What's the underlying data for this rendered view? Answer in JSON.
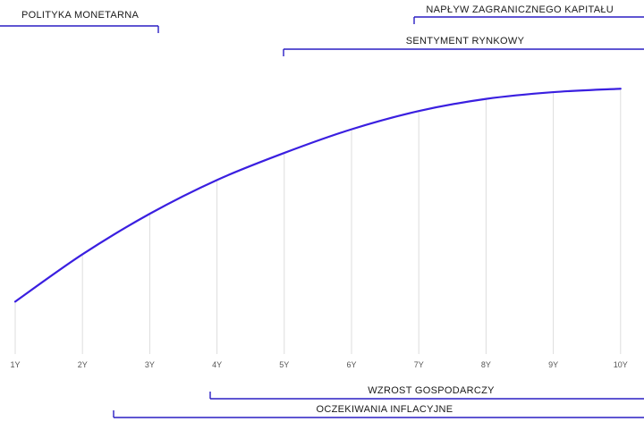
{
  "chart_data": {
    "type": "line",
    "categories": [
      "1Y",
      "2Y",
      "3Y",
      "4Y",
      "5Y",
      "6Y",
      "7Y",
      "8Y",
      "9Y",
      "10Y"
    ],
    "series": [
      {
        "values": [
          1.0,
          1.7,
          2.3,
          2.8,
          3.2,
          3.55,
          3.82,
          4.0,
          4.1,
          4.15
        ]
      }
    ],
    "ylim": [
      0,
      4.5
    ],
    "grid": "vertical",
    "line_color": "#3a1fe0"
  },
  "annotations": {
    "top": [
      {
        "label": "POLITYKA MONETARNA",
        "from": "0Y",
        "to": "3Y",
        "tick_side": "right"
      },
      {
        "label": "NAPŁYW ZAGRANICZNEGO KAPITAŁU",
        "from": "7Y",
        "to": "10Y+",
        "tick_side": "left"
      },
      {
        "label": "SENTYMENT RYNKOWY",
        "from": "5Y",
        "to": "10Y+",
        "tick_side": "left"
      }
    ],
    "bottom": [
      {
        "label": "WZROST GOSPODARCZY",
        "from": "4Y",
        "to": "10Y+",
        "tick_side": "left"
      },
      {
        "label": "OCZEKIWANIA INFLACYJNE",
        "from": "2.5Y",
        "to": "10Y+",
        "tick_side": "left"
      }
    ]
  },
  "colors": {
    "line": "#3a1fe0",
    "bracket": "#2a1fc4",
    "grid": "#dddddd"
  }
}
